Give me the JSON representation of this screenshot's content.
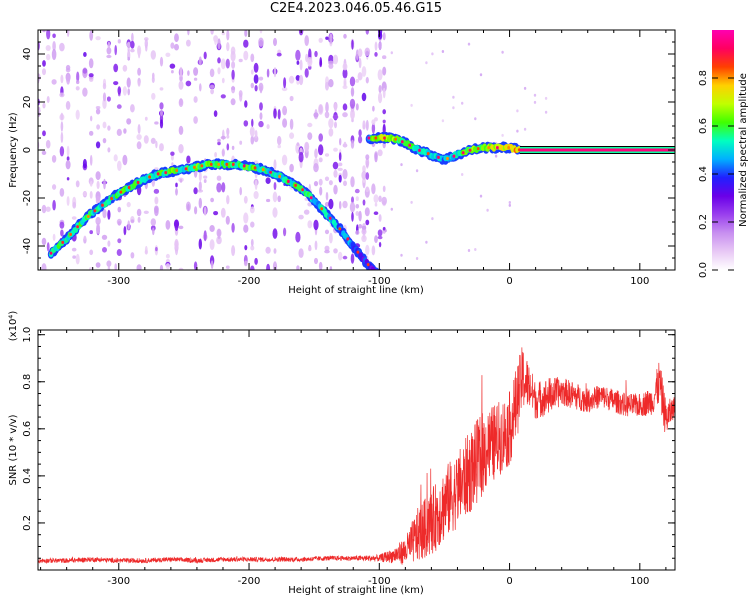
{
  "title": "C2E4.2023.046.05.46.G15",
  "colors": {
    "axes": "#000000",
    "snr_line": "#ee2a2a",
    "colormap": [
      "#ffffff",
      "#e8c8f5",
      "#c890f0",
      "#9a40ee",
      "#6a00e8",
      "#2020ff",
      "#00b0ff",
      "#00ffc0",
      "#40ff00",
      "#c0ff00",
      "#ffd000",
      "#ff4000",
      "#ff0060",
      "#ff00b0"
    ]
  },
  "chart_data": [
    {
      "type": "heatmap",
      "xlabel": "Height of straight line (km)",
      "ylabel": "Frequency (Hz)",
      "xlim": [
        -362,
        127
      ],
      "ylim": [
        -50,
        50
      ],
      "xticks": [
        -300,
        -200,
        -100,
        0,
        100
      ],
      "xtick_labels": [
        "-300",
        "-200",
        "-100",
        "0",
        "100"
      ],
      "yticks": [
        -40,
        -20,
        0,
        20,
        40
      ],
      "ytick_labels": [
        "-40",
        "-20",
        "0",
        "20",
        "40"
      ],
      "grid": false,
      "colorbar": {
        "label": "Normalized spectral amplitude",
        "range": [
          0,
          1
        ],
        "ticks": [
          0.0,
          0.2,
          0.4,
          0.6,
          0.8
        ],
        "tick_labels": [
          "0.0",
          "0.2",
          "0.4",
          "0.6",
          "0.8"
        ]
      },
      "traces": [
        {
          "x": [
            -352,
            -340,
            -330,
            -320,
            -310,
            -300,
            -290,
            -280,
            -270,
            -260,
            -250,
            -240,
            -230,
            -220,
            -210,
            -200,
            -190,
            -180,
            -170,
            -160,
            -150,
            -140,
            -130,
            -120,
            -110,
            -100
          ],
          "y": [
            -43,
            -37,
            -31,
            -26,
            -22,
            -18,
            -15,
            -12,
            -10,
            -9,
            -8,
            -7,
            -6,
            -6,
            -6,
            -7,
            -8,
            -10,
            -13,
            -16,
            -21,
            -27,
            -33,
            -40,
            -47,
            -52
          ],
          "amplitude": [
            0.55,
            0.55,
            0.6,
            0.5,
            0.5,
            0.55,
            0.6,
            0.5,
            0.55,
            0.6,
            0.55,
            0.6,
            0.6,
            0.55,
            0.55,
            0.6,
            0.55,
            0.5,
            0.55,
            0.55,
            0.5,
            0.5,
            0.45,
            0.4,
            0.35,
            0.3
          ]
        },
        {
          "x": [
            -108,
            -100,
            -90,
            -80,
            -70,
            -60,
            -50,
            -40,
            -30,
            -20,
            -10,
            0,
            8
          ],
          "y": [
            5,
            5,
            5,
            3,
            0,
            -2,
            -4,
            -2,
            0,
            1,
            1,
            1,
            0
          ],
          "amplitude": [
            0.5,
            0.7,
            0.65,
            0.6,
            0.5,
            0.5,
            0.45,
            0.55,
            0.6,
            0.65,
            0.7,
            0.75,
            0.8
          ]
        },
        {
          "x": [
            8,
            20,
            40,
            60,
            80,
            100,
            127
          ],
          "y": [
            0,
            0,
            0,
            0,
            0,
            0,
            0
          ],
          "amplitude": [
            0.9,
            0.9,
            0.9,
            0.9,
            0.9,
            0.9,
            0.9
          ]
        }
      ]
    },
    {
      "type": "line",
      "xlabel": "Height of straight line (km)",
      "ylabel": "SNR (10 * v/v)",
      "y_multiplier": "(x10⁴)",
      "xlim": [
        -362,
        127
      ],
      "ylim": [
        0,
        1.02
      ],
      "xticks": [
        -300,
        -200,
        -100,
        0,
        100
      ],
      "xtick_labels": [
        "-300",
        "-200",
        "-100",
        "0",
        "100"
      ],
      "yticks": [
        0.2,
        0.4,
        0.6,
        0.8,
        1.0
      ],
      "ytick_labels": [
        "0.2",
        "0.4",
        "0.6",
        "0.8",
        "1.0"
      ],
      "grid": false,
      "series": [
        {
          "x": [
            -362,
            -340,
            -320,
            -300,
            -280,
            -260,
            -240,
            -220,
            -200,
            -180,
            -160,
            -140,
            -120,
            -100,
            -90,
            -80,
            -70,
            -60,
            -50,
            -40,
            -30,
            -20,
            -10,
            0,
            5,
            10,
            15,
            20,
            30,
            40,
            50,
            60,
            70,
            80,
            90,
            100,
            110,
            115,
            120,
            127
          ],
          "y": [
            0.04,
            0.04,
            0.045,
            0.04,
            0.04,
            0.045,
            0.04,
            0.045,
            0.045,
            0.045,
            0.045,
            0.05,
            0.05,
            0.05,
            0.06,
            0.08,
            0.15,
            0.2,
            0.28,
            0.34,
            0.42,
            0.5,
            0.55,
            0.6,
            0.7,
            0.82,
            0.78,
            0.72,
            0.74,
            0.76,
            0.74,
            0.72,
            0.74,
            0.72,
            0.7,
            0.7,
            0.72,
            0.8,
            0.64,
            0.7
          ],
          "noise": [
            0.01,
            0.01,
            0.01,
            0.01,
            0.01,
            0.01,
            0.01,
            0.01,
            0.01,
            0.01,
            0.01,
            0.01,
            0.01,
            0.015,
            0.03,
            0.06,
            0.12,
            0.14,
            0.16,
            0.16,
            0.18,
            0.18,
            0.16,
            0.16,
            0.16,
            0.14,
            0.1,
            0.08,
            0.08,
            0.06,
            0.06,
            0.05,
            0.05,
            0.05,
            0.05,
            0.05,
            0.06,
            0.1,
            0.08,
            0.04
          ]
        }
      ]
    }
  ]
}
